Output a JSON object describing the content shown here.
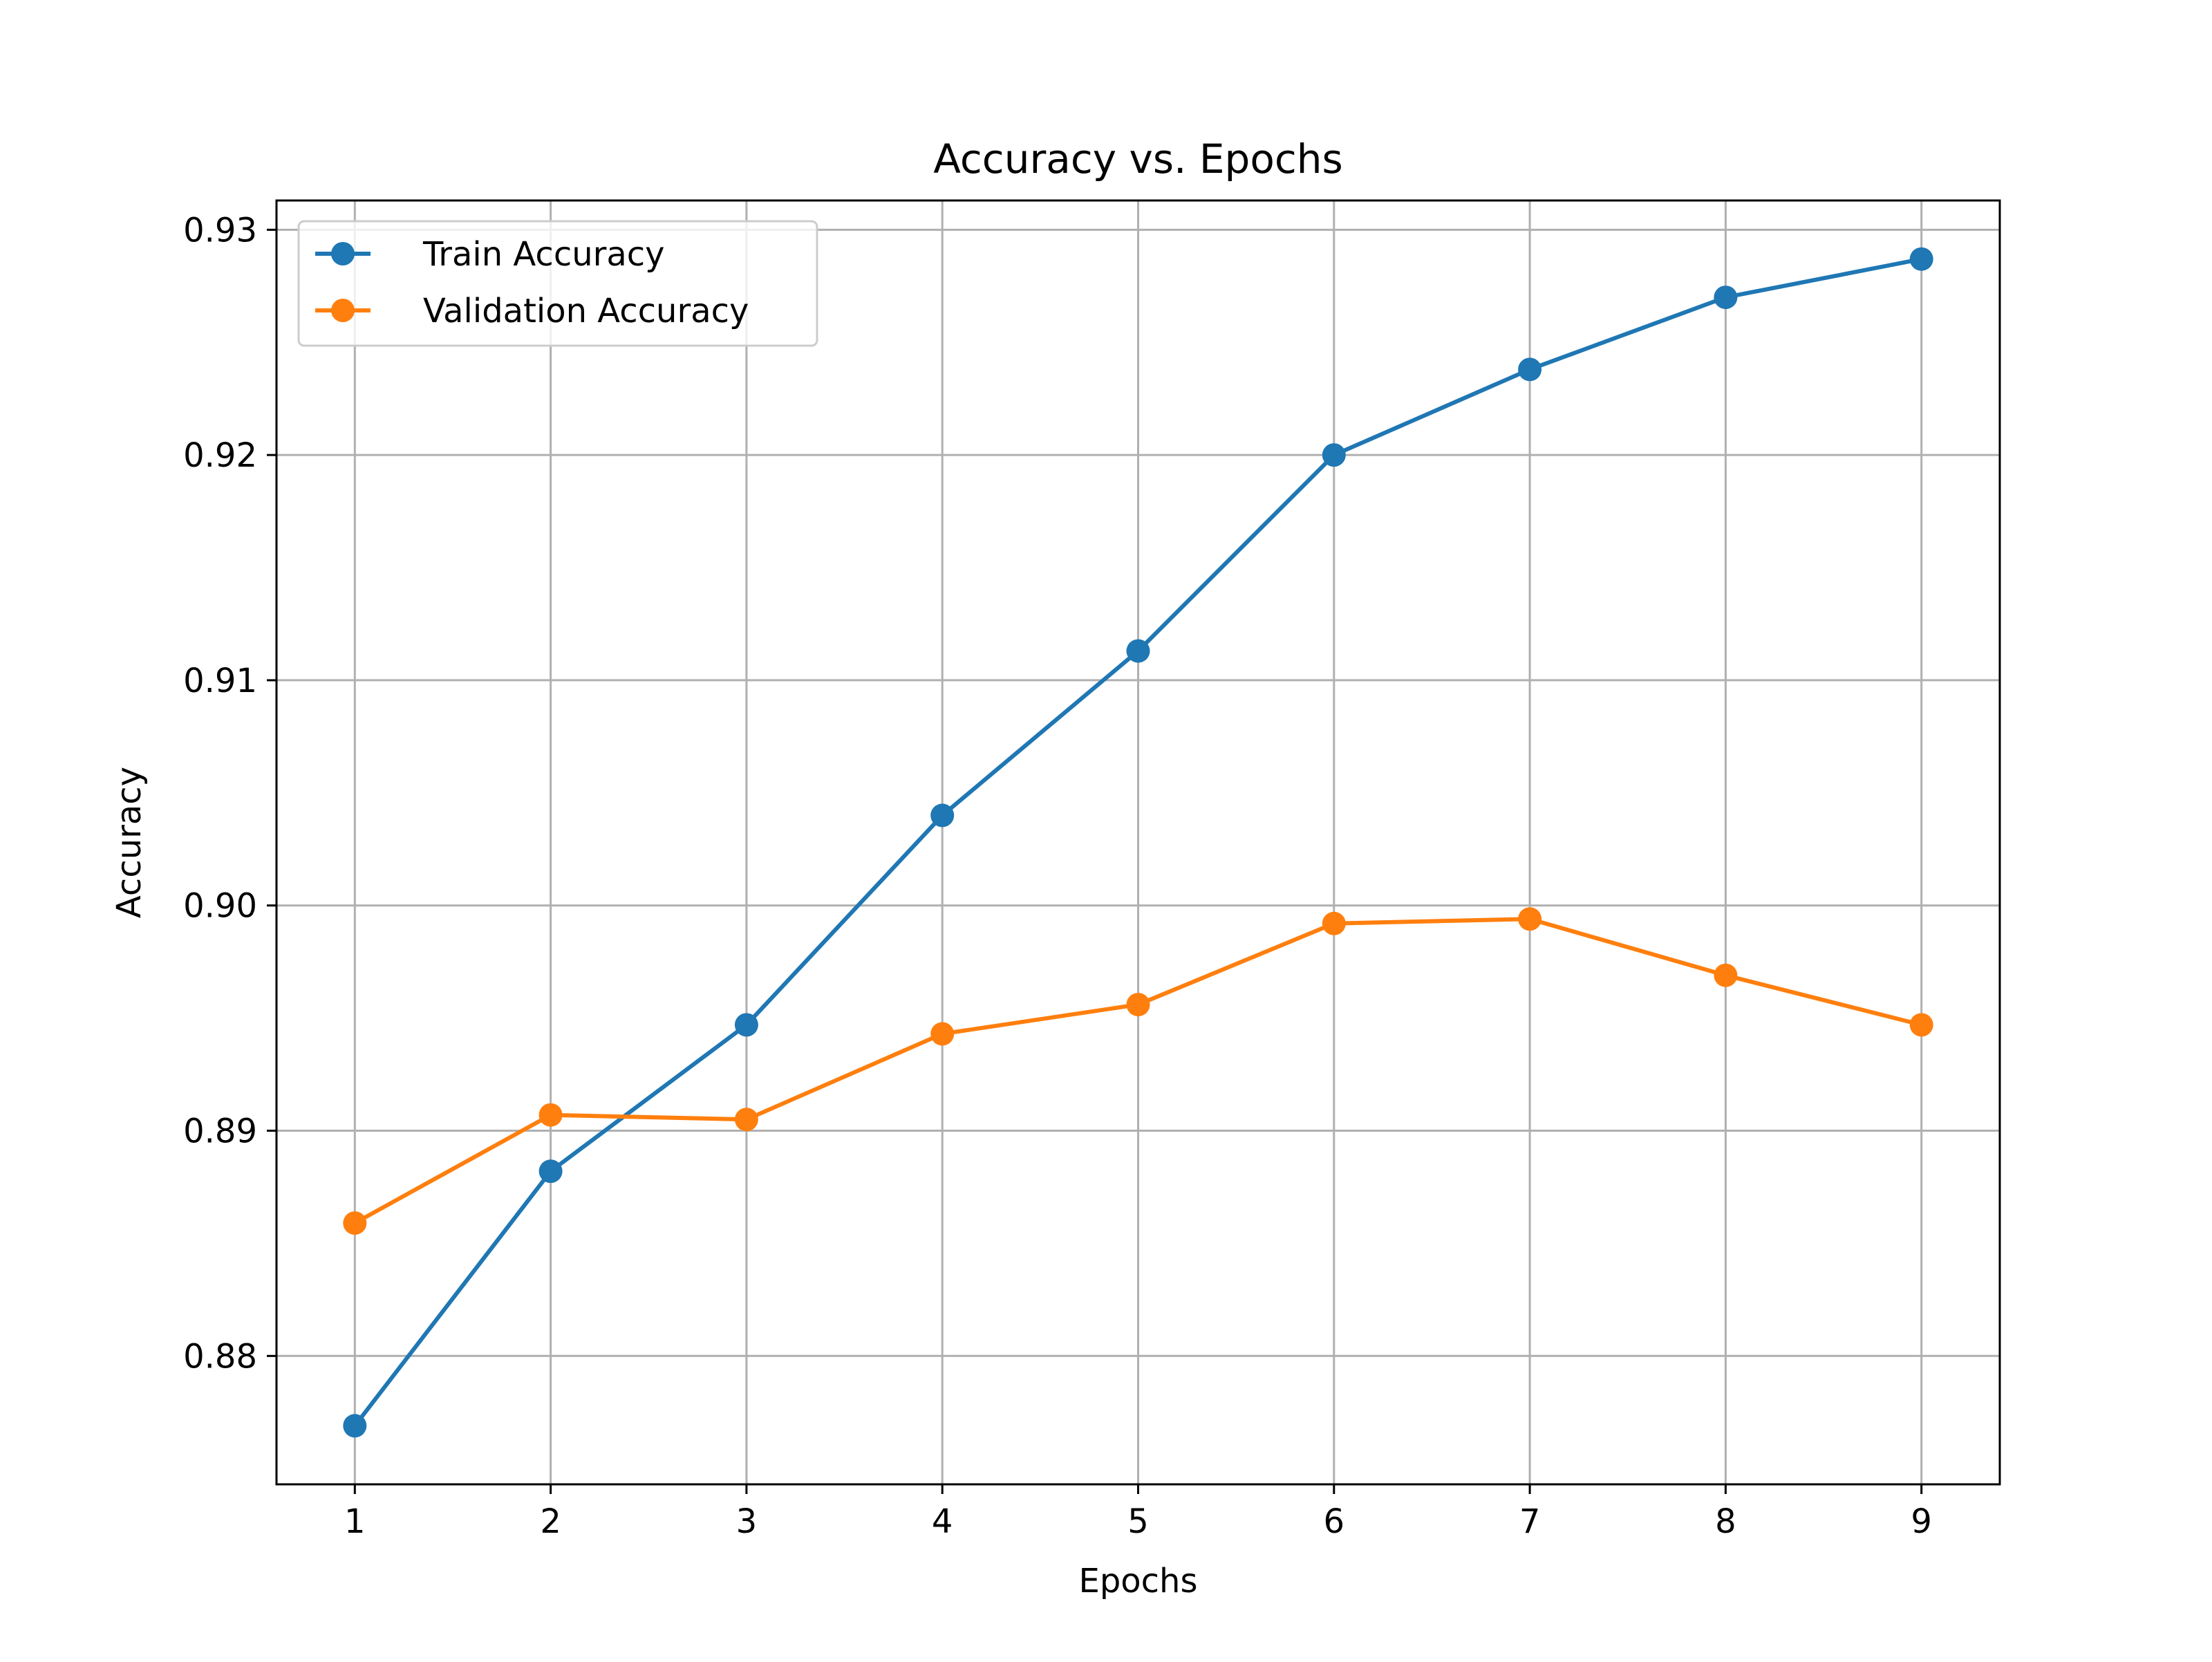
{
  "chart_data": {
    "type": "line",
    "title": "Accuracy vs. Epochs",
    "xlabel": "Epochs",
    "ylabel": "Accuracy",
    "x": [
      1,
      2,
      3,
      4,
      5,
      6,
      7,
      8,
      9
    ],
    "xlim": [
      0.6,
      9.4
    ],
    "ylim": [
      0.8743,
      0.9313
    ],
    "xticks": [
      1,
      2,
      3,
      4,
      5,
      6,
      7,
      8,
      9
    ],
    "xtick_labels": [
      "1",
      "2",
      "3",
      "4",
      "5",
      "6",
      "7",
      "8",
      "9"
    ],
    "yticks": [
      0.88,
      0.89,
      0.9,
      0.91,
      0.92,
      0.93
    ],
    "ytick_labels": [
      "0.88",
      "0.89",
      "0.90",
      "0.91",
      "0.92",
      "0.93"
    ],
    "grid": true,
    "legend_position": "top-left",
    "series": [
      {
        "name": "Train Accuracy",
        "color": "#1f77b4",
        "marker": "circle",
        "values": [
          0.8769,
          0.8882,
          0.8947,
          0.904,
          0.9113,
          0.92,
          0.9238,
          0.927,
          0.9287
        ]
      },
      {
        "name": "Validation Accuracy",
        "color": "#ff7f0e",
        "marker": "circle",
        "values": [
          0.8859,
          0.8907,
          0.8905,
          0.8943,
          0.8956,
          0.8992,
          0.8994,
          0.8969,
          0.8947
        ]
      }
    ]
  }
}
